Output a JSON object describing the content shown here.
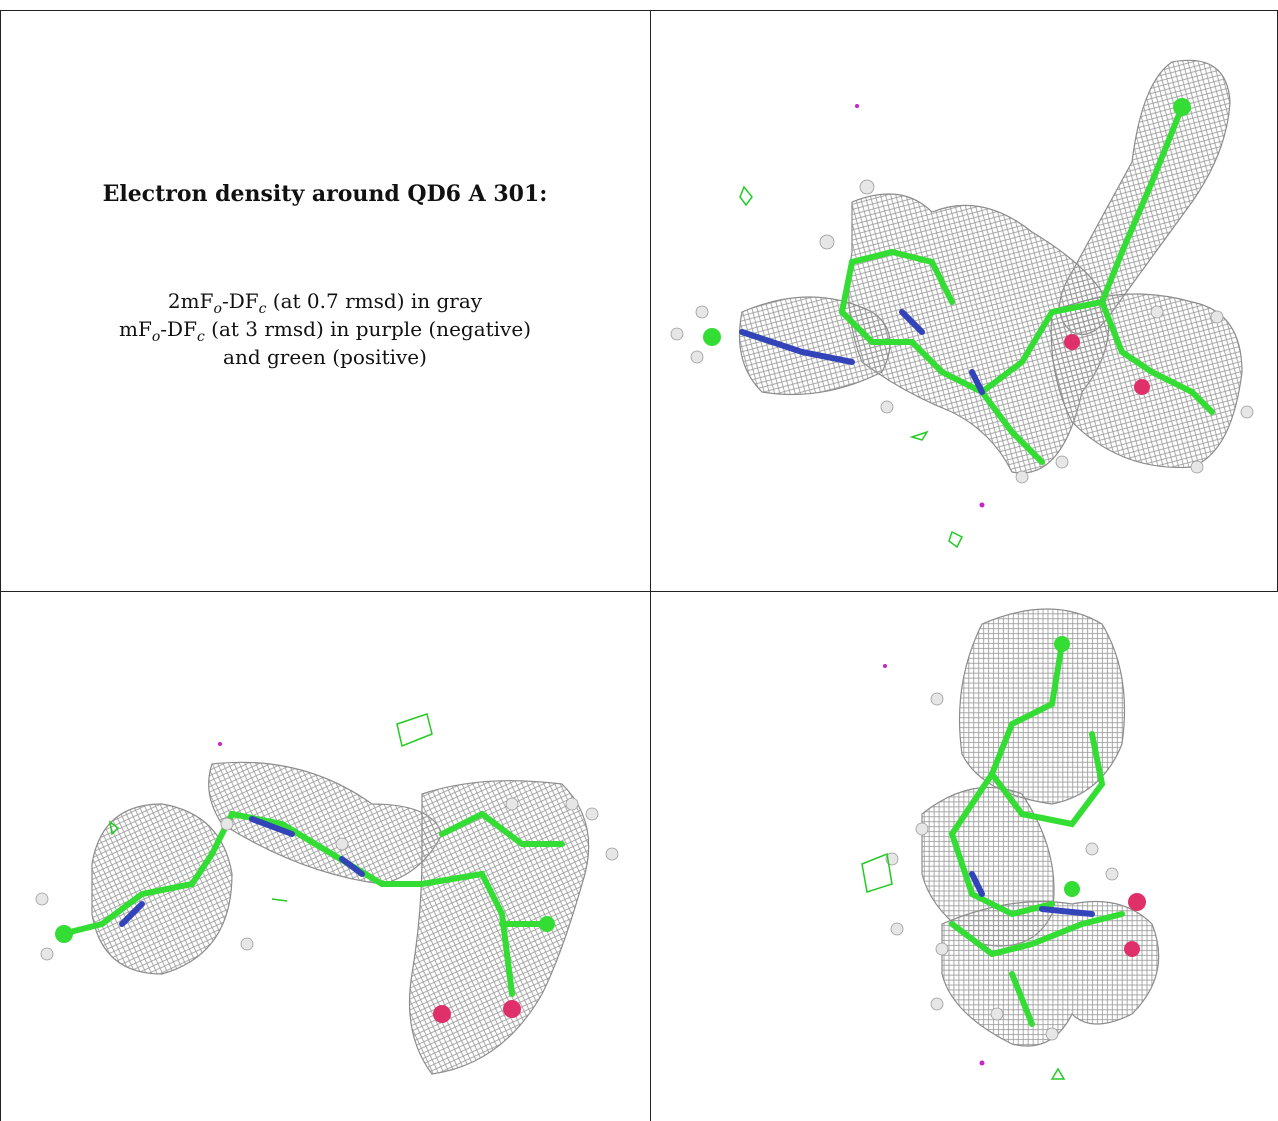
{
  "legend": {
    "title": "Electron density around QD6 A 301:",
    "line1_pre": "2mF",
    "line1_sub1": "o",
    "line1_mid": "-DF",
    "line1_sub2": "c",
    "line1_post": " (at 0.7 rmsd) in gray",
    "line2_pre": "mF",
    "line2_sub1": "o",
    "line2_mid": "-DF",
    "line2_sub2": "c",
    "line2_post": " (at 3 rmsd) in purple (negative)",
    "line3": "and green (positive)"
  },
  "colors": {
    "mesh": "#9a9a9a",
    "carbon": "#33dd33",
    "nitrogen": "#3344bb",
    "oxygen": "#e0306a",
    "hydrogen": "#e6e6e6",
    "negative": "#cc22cc",
    "positive": "#22cc22",
    "border": "#222222"
  },
  "views": [
    "density-view-top-right",
    "density-view-bottom-left",
    "density-view-bottom-right"
  ]
}
